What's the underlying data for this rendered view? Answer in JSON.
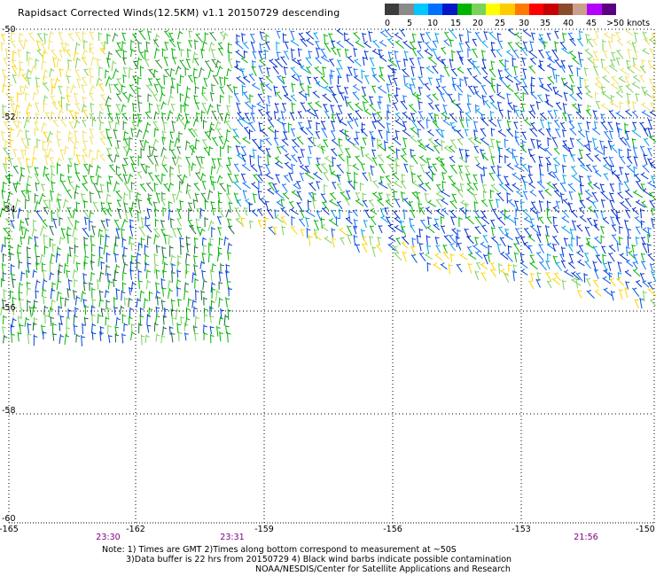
{
  "title": "Rapidsact Corrected Winds(12.5KM) v1.1 20150729 descending",
  "colorbar": {
    "colors": [
      "#3c3c3c",
      "#8a8a8a",
      "#00c8ff",
      "#0070ff",
      "#0018c8",
      "#00b400",
      "#7ad25a",
      "#ffff00",
      "#ffcc00",
      "#ff7a00",
      "#ff0000",
      "#c80000",
      "#8b4a2a",
      "#c8a08c",
      "#b400ff",
      "#5a0080"
    ],
    "labels": [
      "0",
      "5",
      "10",
      "15",
      "20",
      "25",
      "30",
      "35",
      "40",
      "45",
      ">50 knots"
    ]
  },
  "lat_labels": [
    "-50",
    "-52",
    "-54",
    "-56",
    "-58",
    "-60"
  ],
  "lon_labels": [
    "-165",
    "-162",
    "-159",
    "-156",
    "-153",
    "-150"
  ],
  "time_labels": [
    "23:30",
    "23:31",
    "21:56"
  ],
  "notes": [
    "Note: 1) Times are GMT 2)Times along bottom correspond to measurement at ~50S",
    "3)Data buffer is 22 hrs from 20150729 4) Black wind barbs indicate possible contamination",
    "NOAA/NESDIS/Center for Satellite Applications and Research"
  ]
}
